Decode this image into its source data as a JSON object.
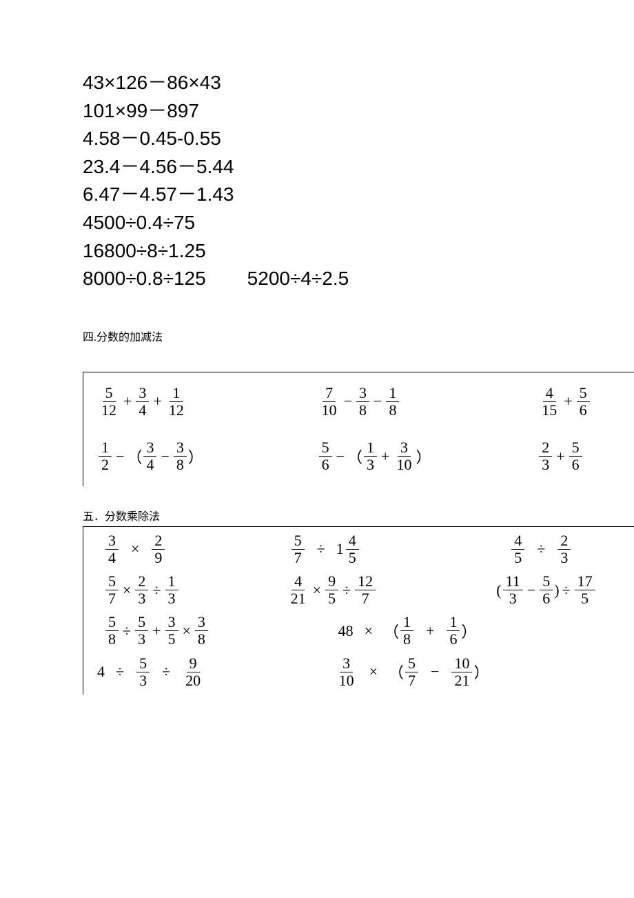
{
  "arithmetic": {
    "lines": [
      "43×126－86×43",
      "101×99－897",
      "4.58－0.45-0.55",
      "23.4－4.56－5.44",
      "6.47－4.57－1.43",
      "4500÷0.4÷75",
      "16800÷8÷1.25"
    ],
    "last_row": [
      "8000÷0.8÷125",
      "5200÷4÷2.5"
    ]
  },
  "section4": {
    "heading": "四.分数的加减法",
    "rows": [
      {
        "c1": {
          "parts": [
            [
              "frac",
              "5",
              "12"
            ],
            [
              "op",
              "+"
            ],
            [
              "frac",
              "3",
              "4"
            ],
            [
              "op",
              "+"
            ],
            [
              "frac",
              "1",
              "12"
            ]
          ]
        },
        "c2": {
          "parts": [
            [
              "frac",
              "7",
              "10"
            ],
            [
              "op",
              "−"
            ],
            [
              "frac",
              "3",
              "8"
            ],
            [
              "op",
              "−"
            ],
            [
              "frac",
              "1",
              "8"
            ]
          ]
        },
        "c3": {
          "parts": [
            [
              "frac",
              "4",
              "15"
            ],
            [
              "op",
              "+"
            ],
            [
              "frac",
              "5",
              "6"
            ]
          ]
        },
        "widths": [
          320,
          320,
          160
        ]
      },
      {
        "c1": {
          "parts": [
            [
              "frac",
              "1",
              "2"
            ],
            [
              "op",
              "−"
            ],
            [
              "txt",
              "（"
            ],
            [
              "frac",
              "3",
              "4"
            ],
            [
              "op",
              "−"
            ],
            [
              "frac",
              "3",
              "8"
            ],
            [
              "txt",
              "）"
            ]
          ]
        },
        "c2": {
          "parts": [
            [
              "frac",
              "5",
              "6"
            ],
            [
              "op",
              "−"
            ],
            [
              "txt",
              "（"
            ],
            [
              "frac",
              "1",
              "3"
            ],
            [
              "op",
              "+"
            ],
            [
              "frac",
              "3",
              "10"
            ],
            [
              "txt",
              "）"
            ]
          ]
        },
        "c3": {
          "parts": [
            [
              "frac",
              "2",
              "3"
            ],
            [
              "op",
              "+"
            ],
            [
              "frac",
              "5",
              "6"
            ]
          ]
        },
        "widths": [
          320,
          320,
          160
        ]
      }
    ]
  },
  "section5": {
    "heading": "五．分数乘除法",
    "rows": [
      {
        "c1": {
          "parts": [
            [
              "frac",
              "3",
              "4"
            ],
            [
              "opw",
              "×"
            ],
            [
              "frac",
              "2",
              "9"
            ]
          ]
        },
        "c2": {
          "parts": [
            [
              "frac",
              "5",
              "7"
            ],
            [
              "opw",
              "÷"
            ],
            [
              "mixed",
              "1",
              "4",
              "5"
            ]
          ]
        },
        "c3": {
          "parts": [
            [
              "frac",
              "4",
              "5"
            ],
            [
              "opw",
              "÷"
            ],
            [
              "frac",
              "2",
              "3"
            ]
          ]
        },
        "widths": [
          280,
          310,
          210
        ],
        "offsets": [
          10,
          0,
          10
        ]
      },
      {
        "c1": {
          "parts": [
            [
              "frac",
              "5",
              "7"
            ],
            [
              "op",
              "×"
            ],
            [
              "frac",
              "2",
              "3"
            ],
            [
              "op",
              "÷"
            ],
            [
              "frac",
              "1",
              "3"
            ]
          ]
        },
        "c2": {
          "parts": [
            [
              "frac",
              "4",
              "21"
            ],
            [
              "op",
              "×"
            ],
            [
              "frac",
              "9",
              "5"
            ],
            [
              "op",
              "÷"
            ],
            [
              "frac",
              "12",
              "7"
            ]
          ]
        },
        "c3": {
          "parts": [
            [
              "txt",
              "("
            ],
            [
              "frac",
              "11",
              "3"
            ],
            [
              "op",
              "−"
            ],
            [
              "frac",
              "5",
              "6"
            ],
            [
              "txt",
              ")"
            ],
            [
              "op",
              "÷"
            ],
            [
              "frac",
              "17",
              "5"
            ]
          ]
        },
        "widths": [
          275,
          305,
          220
        ],
        "offsets": [
          10,
          0,
          0
        ]
      },
      {
        "c1": {
          "parts": [
            [
              "frac",
              "5",
              "8"
            ],
            [
              "op",
              "÷"
            ],
            [
              "frac",
              "5",
              "3"
            ],
            [
              "op",
              "+"
            ],
            [
              "frac",
              "3",
              "5"
            ],
            [
              "op",
              "×"
            ],
            [
              "frac",
              "3",
              "8"
            ]
          ]
        },
        "c2": {
          "parts": [
            [
              "txt",
              "48"
            ],
            [
              "opw",
              "×"
            ],
            [
              "txt",
              "（"
            ],
            [
              "frac",
              "1",
              "8"
            ],
            [
              "opw",
              "+"
            ],
            [
              "frac",
              "1",
              "6"
            ],
            [
              "txt",
              "）"
            ]
          ]
        },
        "widths": [
          320,
          480
        ],
        "offsets": [
          10,
          30
        ]
      },
      {
        "c1": {
          "parts": [
            [
              "txt",
              "4"
            ],
            [
              "opw",
              "÷"
            ],
            [
              "frac",
              "5",
              "3"
            ],
            [
              "opw",
              "÷"
            ],
            [
              "frac",
              "9",
              "20"
            ]
          ]
        },
        "c2": {
          "parts": [
            [
              "frac",
              "3",
              "10"
            ],
            [
              "opw",
              "×"
            ],
            [
              "txt",
              "（"
            ],
            [
              "frac",
              "5",
              "7"
            ],
            [
              "opw",
              "−"
            ],
            [
              "frac",
              "10",
              "21"
            ],
            [
              "txt",
              "）"
            ]
          ]
        },
        "widths": [
          310,
          490
        ],
        "offsets": [
          0,
          35
        ]
      }
    ]
  },
  "colors": {
    "text": "#000000",
    "bg": "#ffffff",
    "border": "#000000"
  },
  "fonts": {
    "arith_size": 28,
    "heading_size": 16,
    "math_size": 22
  }
}
